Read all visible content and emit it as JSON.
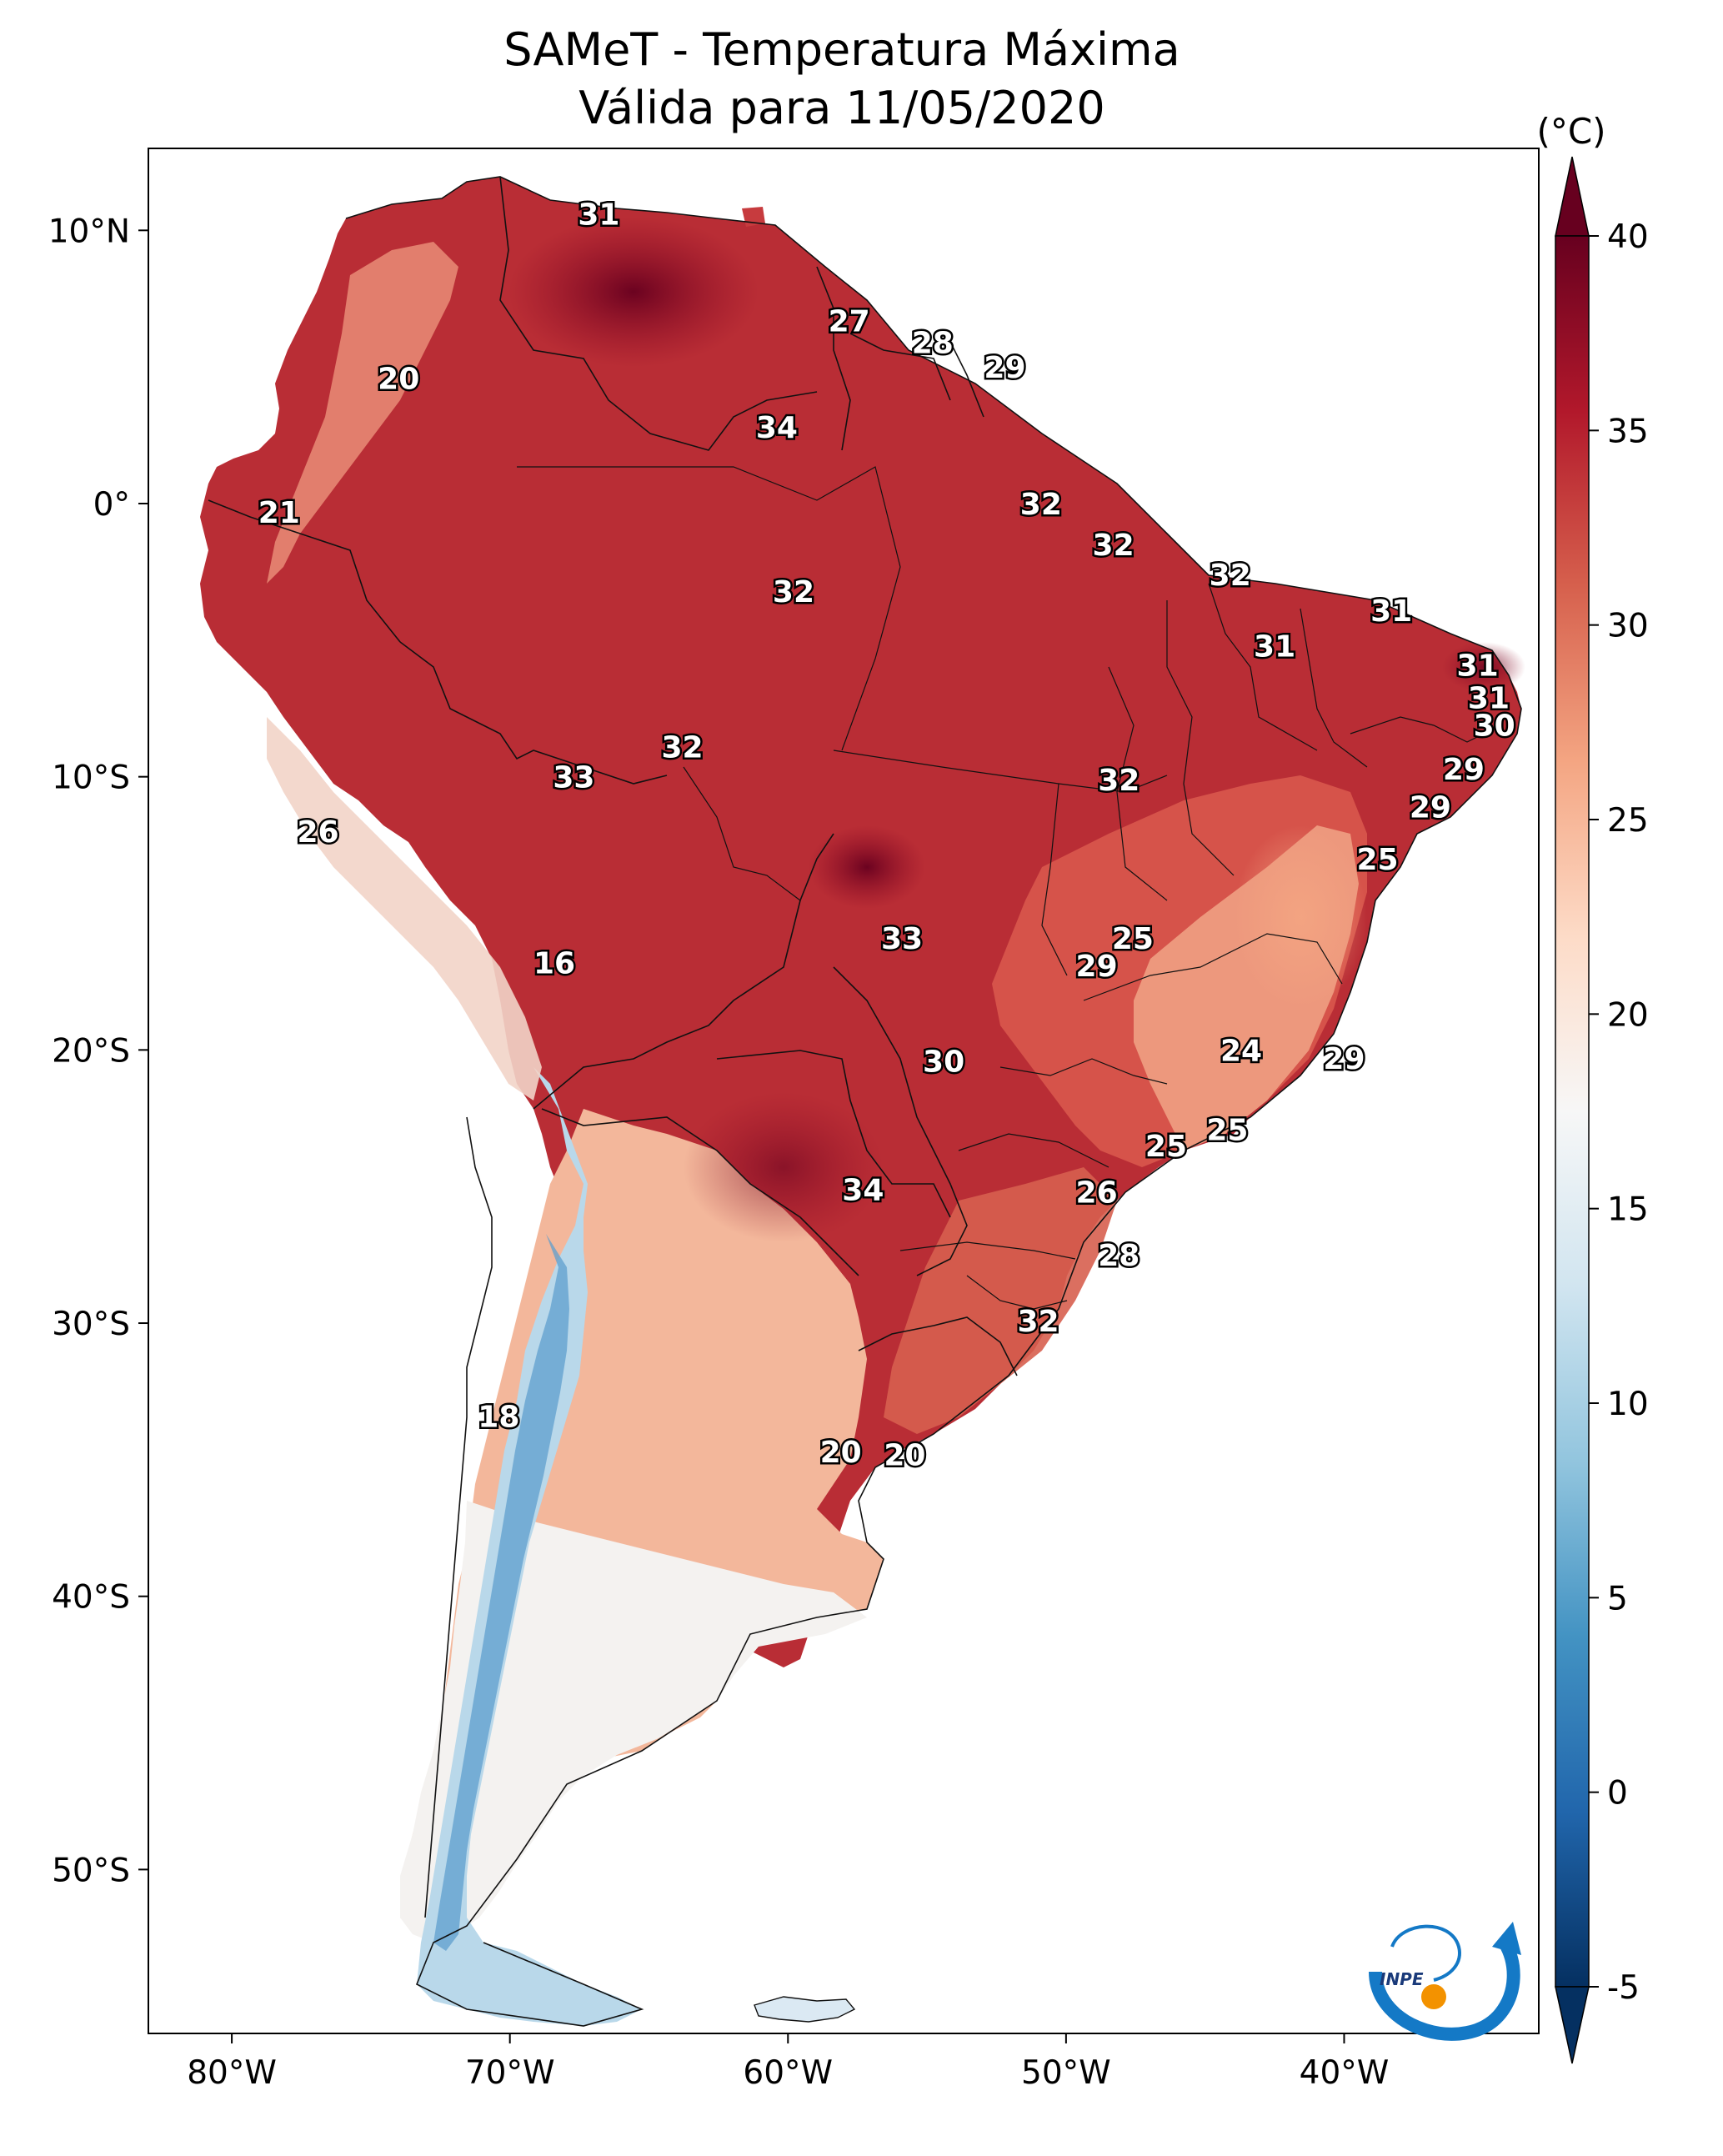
{
  "title": {
    "line1": "SAMeT - Temperatura Máxima",
    "line2": "Válida para 11/05/2020"
  },
  "axes": {
    "lon_ticks": [
      {
        "lon": -80,
        "label": "80°W"
      },
      {
        "lon": -70,
        "label": "70°W"
      },
      {
        "lon": -60,
        "label": "60°W"
      },
      {
        "lon": -50,
        "label": "50°W"
      },
      {
        "lon": -40,
        "label": "40°W"
      }
    ],
    "lat_ticks": [
      {
        "lat": 10,
        "label": "10°N"
      },
      {
        "lat": 0,
        "label": "0°"
      },
      {
        "lat": -10,
        "label": "10°S"
      },
      {
        "lat": -20,
        "label": "20°S"
      },
      {
        "lat": -30,
        "label": "30°S"
      },
      {
        "lat": -40,
        "label": "40°S"
      },
      {
        "lat": -50,
        "label": "50°S"
      }
    ],
    "lon_range": [
      -83,
      -33
    ],
    "lat_range": [
      -56,
      13
    ]
  },
  "colorbar": {
    "unit": "(°C)",
    "min": -5,
    "max": 40,
    "ticks": [
      {
        "value": 40,
        "label": "40"
      },
      {
        "value": 35,
        "label": "35"
      },
      {
        "value": 30,
        "label": "30"
      },
      {
        "value": 25,
        "label": "25"
      },
      {
        "value": 20,
        "label": "20"
      },
      {
        "value": 15,
        "label": "15"
      },
      {
        "value": 10,
        "label": "10"
      },
      {
        "value": 5,
        "label": "5"
      },
      {
        "value": 0,
        "label": "0"
      },
      {
        "value": -5,
        "label": "-5"
      }
    ],
    "colors": [
      "#053061",
      "#2166ac",
      "#4393c3",
      "#92c5de",
      "#d1e5f0",
      "#f7f7f7",
      "#fddbc7",
      "#f4a582",
      "#d6604d",
      "#b2182b",
      "#67001f"
    ]
  },
  "map_labels": [
    {
      "text": "31",
      "lon": -66.8,
      "lat": 10.6
    },
    {
      "text": "27",
      "lon": -57.8,
      "lat": 6.7
    },
    {
      "text": "28",
      "lon": -54.8,
      "lat": 5.9
    },
    {
      "text": "29",
      "lon": -52.2,
      "lat": 5.0
    },
    {
      "text": "20",
      "lon": -74.0,
      "lat": 4.6
    },
    {
      "text": "34",
      "lon": -60.4,
      "lat": 2.8
    },
    {
      "text": "21",
      "lon": -78.3,
      "lat": -0.3
    },
    {
      "text": "32",
      "lon": -50.9,
      "lat": 0.0
    },
    {
      "text": "32",
      "lon": -48.3,
      "lat": -1.5
    },
    {
      "text": "32",
      "lon": -59.8,
      "lat": -3.2
    },
    {
      "text": "32",
      "lon": -44.1,
      "lat": -2.6
    },
    {
      "text": "31",
      "lon": -38.3,
      "lat": -3.9
    },
    {
      "text": "31",
      "lon": -42.5,
      "lat": -5.2
    },
    {
      "text": "31",
      "lon": -35.2,
      "lat": -5.9
    },
    {
      "text": "31",
      "lon": -34.8,
      "lat": -7.1
    },
    {
      "text": "30",
      "lon": -34.6,
      "lat": -8.1
    },
    {
      "text": "32",
      "lon": -63.8,
      "lat": -8.9
    },
    {
      "text": "33",
      "lon": -67.7,
      "lat": -10.0
    },
    {
      "text": "32",
      "lon": -48.1,
      "lat": -10.1
    },
    {
      "text": "29",
      "lon": -35.7,
      "lat": -9.7
    },
    {
      "text": "29",
      "lon": -36.9,
      "lat": -11.1
    },
    {
      "text": "26",
      "lon": -76.9,
      "lat": -12.0
    },
    {
      "text": "25",
      "lon": -38.8,
      "lat": -13.0
    },
    {
      "text": "33",
      "lon": -55.9,
      "lat": -15.9
    },
    {
      "text": "25",
      "lon": -47.6,
      "lat": -15.9
    },
    {
      "text": "29",
      "lon": -48.9,
      "lat": -16.9
    },
    {
      "text": "16",
      "lon": -68.4,
      "lat": -16.8
    },
    {
      "text": "24",
      "lon": -43.7,
      "lat": -20.0
    },
    {
      "text": "29",
      "lon": -40.0,
      "lat": -20.3
    },
    {
      "text": "30",
      "lon": -54.4,
      "lat": -20.4
    },
    {
      "text": "25",
      "lon": -44.2,
      "lat": -22.9
    },
    {
      "text": "25",
      "lon": -46.4,
      "lat": -23.5
    },
    {
      "text": "34",
      "lon": -57.3,
      "lat": -25.1
    },
    {
      "text": "26",
      "lon": -48.9,
      "lat": -25.2
    },
    {
      "text": "28",
      "lon": -48.1,
      "lat": -27.5
    },
    {
      "text": "32",
      "lon": -51.0,
      "lat": -29.9
    },
    {
      "text": "18",
      "lon": -70.4,
      "lat": -33.4
    },
    {
      "text": "20",
      "lon": -58.1,
      "lat": -34.7
    },
    {
      "text": "20",
      "lon": -55.8,
      "lat": -34.8
    }
  ],
  "logo": {
    "text": "INPE"
  }
}
